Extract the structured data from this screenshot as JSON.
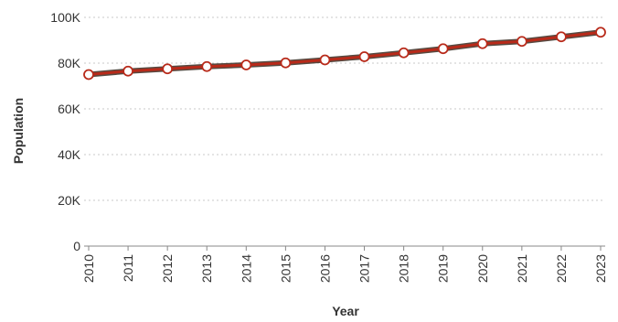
{
  "chart_data": {
    "type": "line",
    "title": "",
    "xlabel": "Year",
    "ylabel": "Population",
    "x": [
      "2010",
      "2011",
      "2012",
      "2013",
      "2014",
      "2015",
      "2016",
      "2017",
      "2018",
      "2019",
      "2020",
      "2021",
      "2022",
      "2023"
    ],
    "series": [
      {
        "name": "",
        "values": [
          75000,
          76500,
          77500,
          78500,
          79200,
          80100,
          81400,
          82800,
          84500,
          86300,
          88500,
          89500,
          91500,
          93500
        ]
      }
    ],
    "ylim": [
      0,
      100000
    ],
    "yticks": [
      0,
      20000,
      40000,
      60000,
      80000,
      100000
    ],
    "ytick_labels": [
      "0",
      "20K",
      "40K",
      "60K",
      "80K",
      "100K"
    ],
    "grid": true,
    "legend": "none",
    "colors": {
      "line": "#b82a1a",
      "shadow": "#3a2a20",
      "marker_fill": "#ffffff",
      "marker_stroke": "#b82a1a"
    }
  }
}
